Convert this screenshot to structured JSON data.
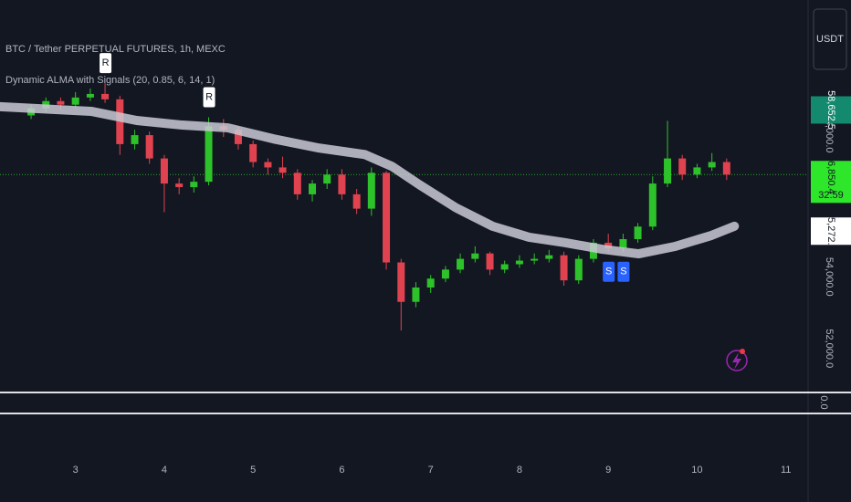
{
  "chart_data": {
    "type": "candlestick",
    "title": "BTC / Tether PERPETUAL FUTURES, 1h, MEXC",
    "indicator": "Dynamic ALMA with Signals (20, 0.85, 6, 14, 1)",
    "currency": "USDT",
    "x": [
      2.5,
      2.667,
      2.833,
      3.0,
      3.167,
      3.333,
      3.5,
      3.667,
      3.833,
      4.0,
      4.167,
      4.333,
      4.5,
      4.667,
      4.833,
      5.0,
      5.167,
      5.333,
      5.5,
      5.667,
      5.833,
      6.0,
      6.167,
      6.333,
      6.5,
      6.667,
      6.833,
      7.0,
      7.167,
      7.333,
      7.5,
      7.667,
      7.833,
      8.0,
      8.167,
      8.333,
      8.5,
      8.667,
      8.833,
      9.0,
      9.167,
      9.333,
      9.5,
      9.667,
      9.833,
      10.0,
      10.167,
      10.333
    ],
    "open": [
      58500,
      58700,
      58900,
      58800,
      59000,
      59100,
      58950,
      57700,
      57950,
      57300,
      56600,
      56500,
      56650,
      58200,
      58100,
      57700,
      57200,
      57050,
      56900,
      56300,
      56600,
      56850,
      56300,
      55900,
      56900,
      54400,
      53300,
      53700,
      53950,
      54200,
      54500,
      54650,
      54200,
      54350,
      54450,
      54500,
      54600,
      53900,
      54500,
      54950,
      54800,
      55050,
      55400,
      56600,
      57300,
      56850,
      57050,
      57200
    ],
    "high": [
      58800,
      59000,
      59000,
      59150,
      59250,
      59400,
      59050,
      58100,
      58050,
      57400,
      56750,
      56800,
      58450,
      58400,
      58200,
      57800,
      57300,
      57350,
      57000,
      56700,
      57000,
      57000,
      56450,
      57050,
      56950,
      54500,
      53850,
      54050,
      54300,
      54650,
      54850,
      54700,
      54450,
      54600,
      54650,
      54750,
      54700,
      54600,
      55050,
      55200,
      55200,
      55500,
      56800,
      58350,
      57400,
      57150,
      57450,
      57300
    ],
    "low": [
      58400,
      58600,
      58650,
      58700,
      58900,
      58850,
      57400,
      57550,
      57150,
      55800,
      56300,
      56350,
      56550,
      57900,
      57550,
      57050,
      56850,
      56750,
      56150,
      56100,
      56450,
      56150,
      55750,
      55700,
      54200,
      52500,
      53150,
      53550,
      53850,
      54100,
      54400,
      54050,
      54100,
      54250,
      54350,
      54400,
      53750,
      53800,
      54400,
      54700,
      54700,
      54950,
      55300,
      56500,
      56700,
      56750,
      56950,
      56700
    ],
    "close": [
      58700,
      58900,
      58800,
      59000,
      59100,
      58950,
      57700,
      57950,
      57300,
      56600,
      56500,
      56650,
      58200,
      58100,
      57700,
      57200,
      57050,
      56900,
      56300,
      56600,
      56850,
      56300,
      55900,
      56900,
      54400,
      53300,
      53700,
      53950,
      54200,
      54500,
      54650,
      54200,
      54350,
      54450,
      54500,
      54600,
      53900,
      54500,
      54950,
      54800,
      55050,
      55400,
      56600,
      57300,
      56850,
      57050,
      57200,
      56850
    ],
    "up_color": "#2ec22a",
    "down_color": "#e0434f",
    "alma": {
      "color": "#c9c9d3",
      "x": [
        2.147,
        3.175,
        3.689,
        4.202,
        4.716,
        5.23,
        5.744,
        6.258,
        6.566,
        6.875,
        7.286,
        7.697,
        8.108,
        8.519,
        8.93,
        9.341,
        9.752,
        10.163,
        10.42
      ],
      "values": [
        58744,
        58615,
        58359,
        58231,
        58154,
        57846,
        57590,
        57410,
        57077,
        56564,
        55923,
        55410,
        55103,
        54949,
        54769,
        54641,
        54846,
        55154,
        55410
      ]
    },
    "signals": [
      {
        "label": "R",
        "x": 3.333
      },
      {
        "label": "R",
        "x": 4.5
      },
      {
        "label": "S",
        "x": 9.0
      },
      {
        "label": "S",
        "x": 9.167
      }
    ],
    "xlim": [
      2.15,
      11.25
    ],
    "xticks": [
      3,
      4,
      5,
      6,
      7,
      8,
      9,
      10,
      11
    ],
    "ylim": [
      50900,
      61720
    ],
    "yticks": [
      {
        "value": 52000,
        "label": "52,000.0"
      },
      {
        "value": 54000,
        "label": "54,000.0"
      },
      {
        "value": 58000,
        "label": "58,000.0"
      }
    ],
    "price_labels": [
      {
        "value": 58652.5,
        "label": "58,652.5",
        "color": "#138a6e"
      },
      {
        "value": 56850.4,
        "label": "56,850.4",
        "color": "#2ee62a",
        "countdown": "32:59"
      },
      {
        "value": 55272.7,
        "label": "55,272.7",
        "color": "#ffffff"
      }
    ],
    "pane2_ticks": [
      {
        "value": 0,
        "label": "0.0"
      }
    ]
  }
}
